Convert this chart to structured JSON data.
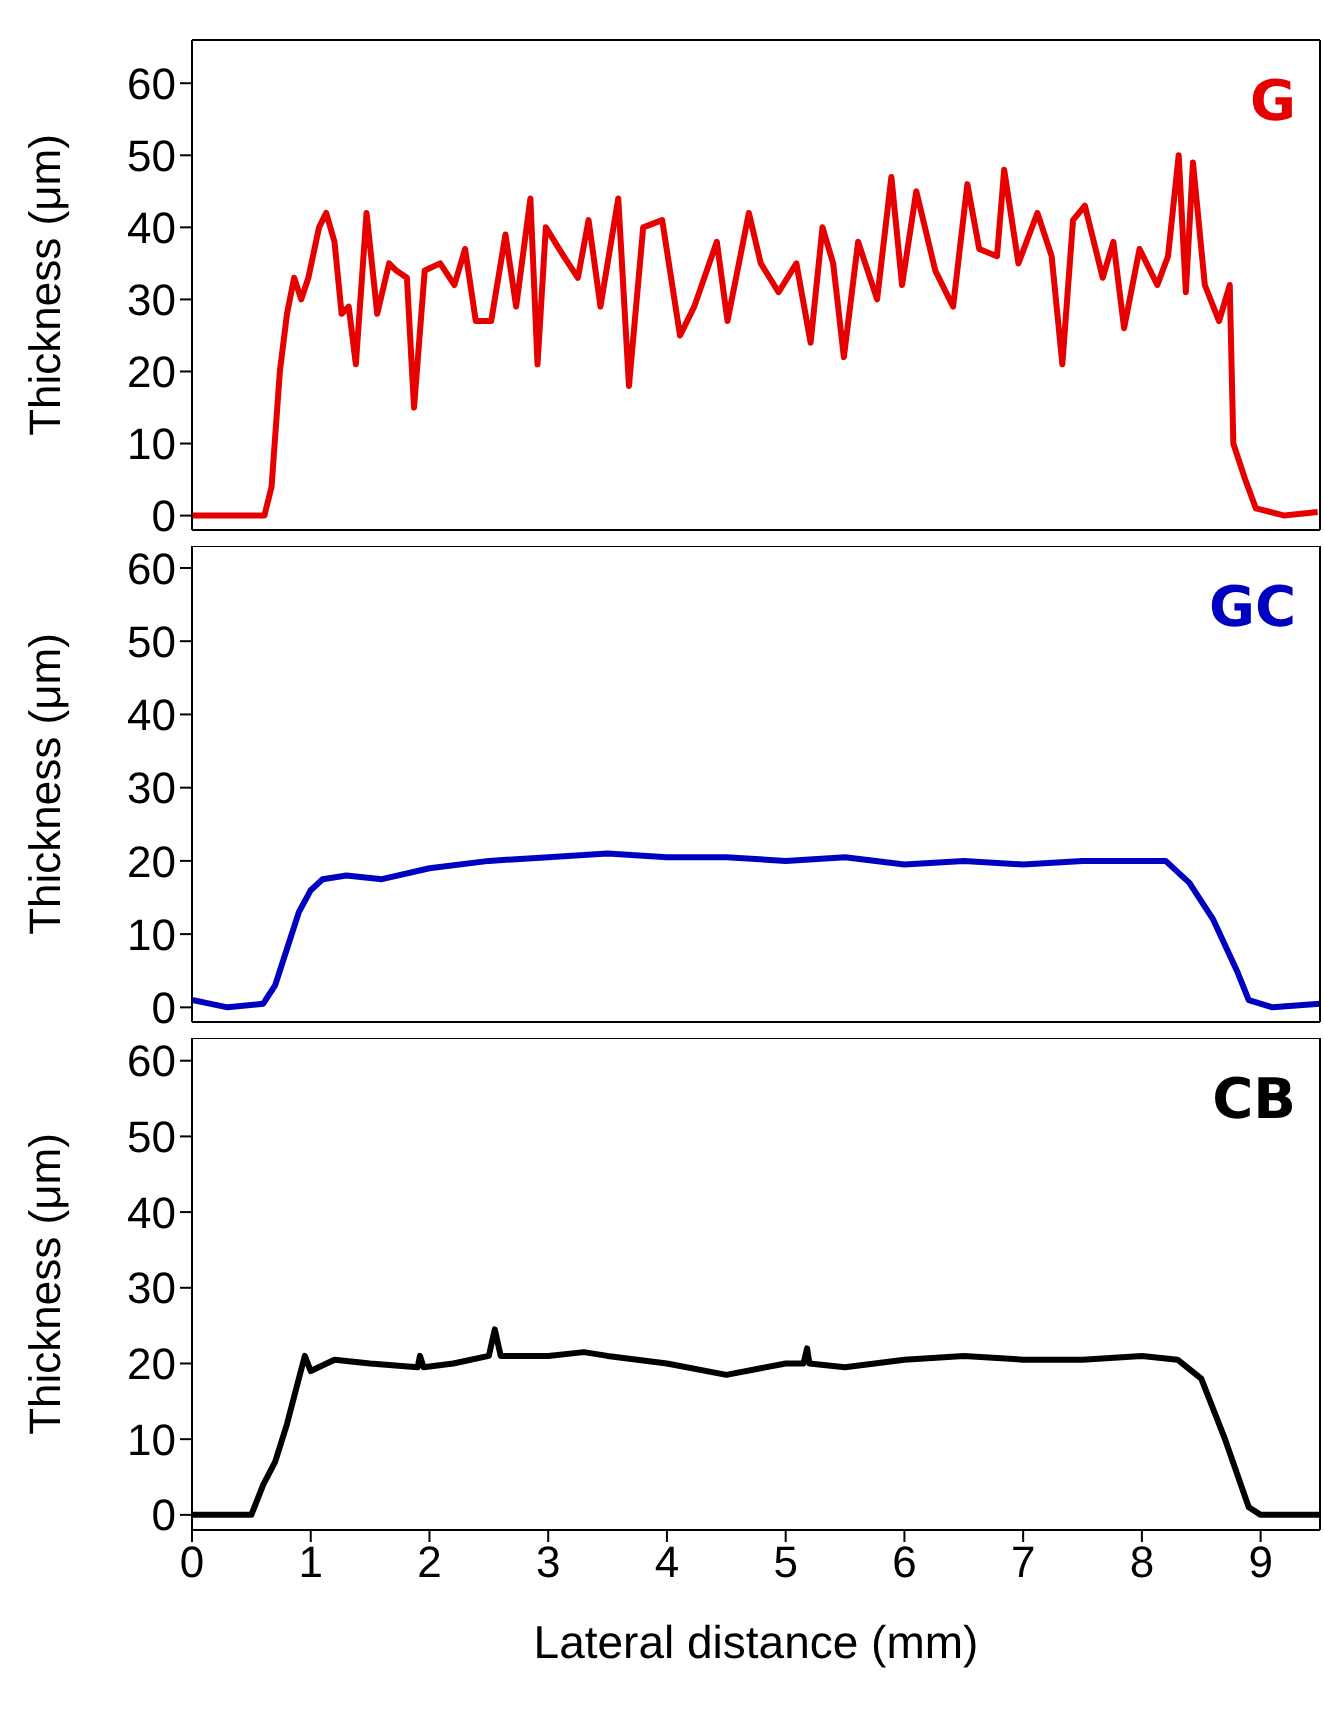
{
  "chart_data": [
    {
      "type": "line",
      "ylabel": "Thickness (μm)",
      "xlim": [
        0,
        9.5
      ],
      "xticks": [
        0,
        1,
        2,
        3,
        4,
        5,
        6,
        7,
        8,
        9
      ],
      "ylim": [
        -2,
        66
      ],
      "yticks": [
        0,
        10,
        20,
        30,
        40,
        50,
        60
      ],
      "tick_labels": "y",
      "marker": "none",
      "line_style": "solid",
      "x": [
        0,
        0.31,
        0.61,
        0.67,
        0.74,
        0.8,
        0.86,
        0.92,
        0.98,
        1.07,
        1.13,
        1.2,
        1.26,
        1.32,
        1.38,
        1.47,
        1.56,
        1.66,
        1.72,
        1.81,
        1.87,
        1.96,
        2.09,
        2.21,
        2.3,
        2.39,
        2.52,
        2.64,
        2.73,
        2.85,
        2.91,
        2.98,
        3.13,
        3.25,
        3.34,
        3.44,
        3.59,
        3.68,
        3.8,
        3.96,
        4.11,
        4.23,
        4.42,
        4.51,
        4.69,
        4.79,
        4.94,
        5.09,
        5.21,
        5.31,
        5.4,
        5.49,
        5.61,
        5.77,
        5.89,
        5.98,
        6.1,
        6.26,
        6.41,
        6.53,
        6.63,
        6.78,
        6.84,
        6.96,
        7.12,
        7.24,
        7.33,
        7.42,
        7.52,
        7.67,
        7.76,
        7.85,
        7.98,
        8.13,
        8.22,
        8.31,
        8.37,
        8.43,
        8.53,
        8.65,
        8.74,
        8.77,
        8.87,
        8.96,
        9.2,
        9.48
      ],
      "series": [
        {
          "name": "G",
          "color": "#e60000",
          "values": [
            0,
            0,
            0,
            4,
            20,
            28,
            33,
            30,
            33,
            40,
            42,
            38,
            28,
            29,
            21,
            42,
            28,
            35,
            34,
            33,
            15,
            34,
            35,
            32,
            37,
            27,
            27,
            39,
            29,
            44,
            21,
            40,
            36,
            33,
            41,
            29,
            44,
            18,
            40,
            41,
            25,
            29,
            38,
            27,
            42,
            35,
            31,
            35,
            24,
            40,
            35,
            22,
            38,
            30,
            47,
            32,
            45,
            34,
            29,
            46,
            37,
            36,
            48,
            35,
            42,
            36,
            21,
            41,
            43,
            33,
            38,
            26,
            37,
            32,
            36,
            50,
            31,
            49,
            32,
            27,
            32,
            10,
            5,
            1,
            0,
            0.5
          ]
        }
      ]
    },
    {
      "type": "line",
      "ylabel": "Thickness (μm)",
      "xlim": [
        0,
        9.5
      ],
      "xticks": [
        0,
        1,
        2,
        3,
        4,
        5,
        6,
        7,
        8,
        9
      ],
      "ylim": [
        -2,
        63
      ],
      "yticks": [
        0,
        10,
        20,
        30,
        40,
        50,
        60
      ],
      "tick_labels": "y",
      "marker": "none",
      "line_style": "solid",
      "x": [
        0,
        0.3,
        0.6,
        0.7,
        0.8,
        0.9,
        1,
        1.1,
        1.3,
        1.6,
        2,
        2.5,
        3,
        3.5,
        4,
        4.5,
        5,
        5.5,
        6,
        6.5,
        7,
        7.5,
        8,
        8.2,
        8.4,
        8.6,
        8.8,
        8.9,
        9.1,
        9.5
      ],
      "series": [
        {
          "name": "GC",
          "color": "#0000c0",
          "values": [
            1,
            0,
            0.5,
            3,
            8,
            13,
            16,
            17.5,
            18,
            17.5,
            19,
            20,
            20.5,
            21,
            20.5,
            20.5,
            20,
            20.5,
            19.5,
            20,
            19.5,
            20,
            20,
            20,
            17,
            12,
            5,
            1,
            0,
            0.5
          ]
        }
      ]
    },
    {
      "type": "line",
      "xlabel": "Lateral distance (mm)",
      "ylabel": "Thickness (μm)",
      "xlim": [
        0,
        9.5
      ],
      "xticks": [
        0,
        1,
        2,
        3,
        4,
        5,
        6,
        7,
        8,
        9
      ],
      "ylim": [
        -2,
        63
      ],
      "yticks": [
        0,
        10,
        20,
        30,
        40,
        50,
        60
      ],
      "marker": "none",
      "line_style": "solid",
      "x": [
        0,
        0.5,
        0.6,
        0.7,
        0.8,
        0.9,
        0.95,
        1,
        1.2,
        1.5,
        1.9,
        1.92,
        1.95,
        2.2,
        2.5,
        2.55,
        2.6,
        3,
        3.3,
        3.5,
        4,
        4.5,
        5,
        5.15,
        5.18,
        5.2,
        5.5,
        6,
        6.5,
        7,
        7.5,
        8,
        8.3,
        8.5,
        8.7,
        8.9,
        9,
        9.5
      ],
      "series": [
        {
          "name": "CB",
          "color": "#000000",
          "values": [
            0,
            0,
            4,
            7,
            12,
            18,
            21,
            19,
            20.5,
            20,
            19.5,
            21,
            19.5,
            20,
            21,
            24.5,
            21,
            21,
            21.5,
            21,
            20,
            18.5,
            20,
            20,
            22,
            20,
            19.5,
            20.5,
            21,
            20.5,
            20.5,
            21,
            20.5,
            18,
            10,
            1,
            0,
            0
          ]
        }
      ]
    }
  ]
}
